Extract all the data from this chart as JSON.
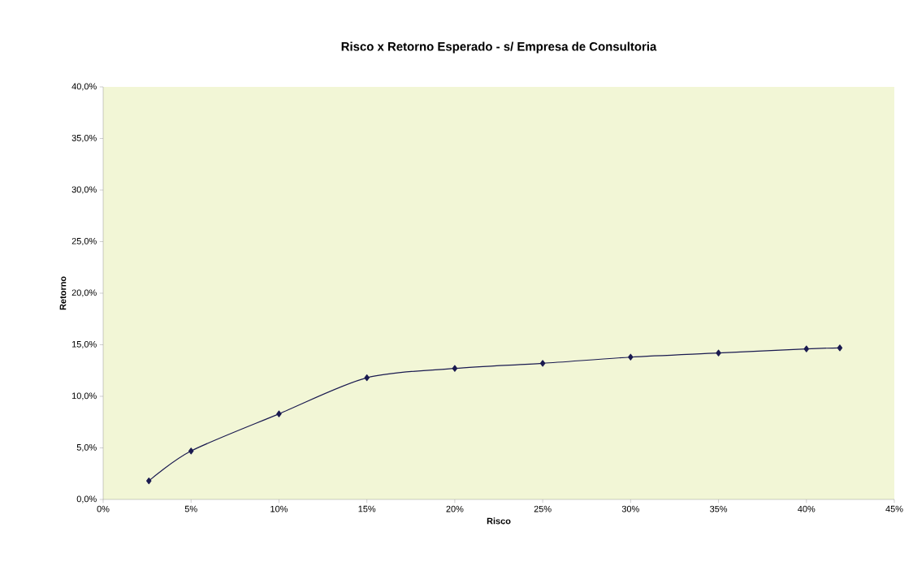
{
  "chart_data": {
    "type": "line",
    "title": "Risco x Retorno Esperado - s/ Empresa de Consultoria",
    "xlabel": "Risco",
    "ylabel": "Retorno",
    "x": [
      2.6,
      5.0,
      10.0,
      15.0,
      20.0,
      25.0,
      30.0,
      35.0,
      40.0,
      41.9
    ],
    "series": [
      {
        "color": "#1a1a50",
        "values": [
          1.8,
          4.7,
          8.3,
          11.8,
          12.7,
          13.2,
          13.8,
          14.2,
          14.6,
          14.7
        ]
      }
    ],
    "xlim": [
      0,
      45
    ],
    "ylim": [
      0,
      40
    ],
    "xticks": [
      {
        "value": 0,
        "label": "0%"
      },
      {
        "value": 5,
        "label": "5%"
      },
      {
        "value": 10,
        "label": "10%"
      },
      {
        "value": 15,
        "label": "15%"
      },
      {
        "value": 20,
        "label": "20%"
      },
      {
        "value": 25,
        "label": "25%"
      },
      {
        "value": 30,
        "label": "30%"
      },
      {
        "value": 35,
        "label": "35%"
      },
      {
        "value": 40,
        "label": "40%"
      },
      {
        "value": 45,
        "label": "45%"
      }
    ],
    "yticks": [
      {
        "value": 0,
        "label": "0,0%"
      },
      {
        "value": 5,
        "label": "5,0%"
      },
      {
        "value": 10,
        "label": "10,0%"
      },
      {
        "value": 15,
        "label": "15,0%"
      },
      {
        "value": 20,
        "label": "20,0%"
      },
      {
        "value": 25,
        "label": "25,0%"
      },
      {
        "value": 30,
        "label": "30,0%"
      },
      {
        "value": 35,
        "label": "35,0%"
      },
      {
        "value": 40,
        "label": "40,0%"
      }
    ],
    "marker": "diamond"
  }
}
